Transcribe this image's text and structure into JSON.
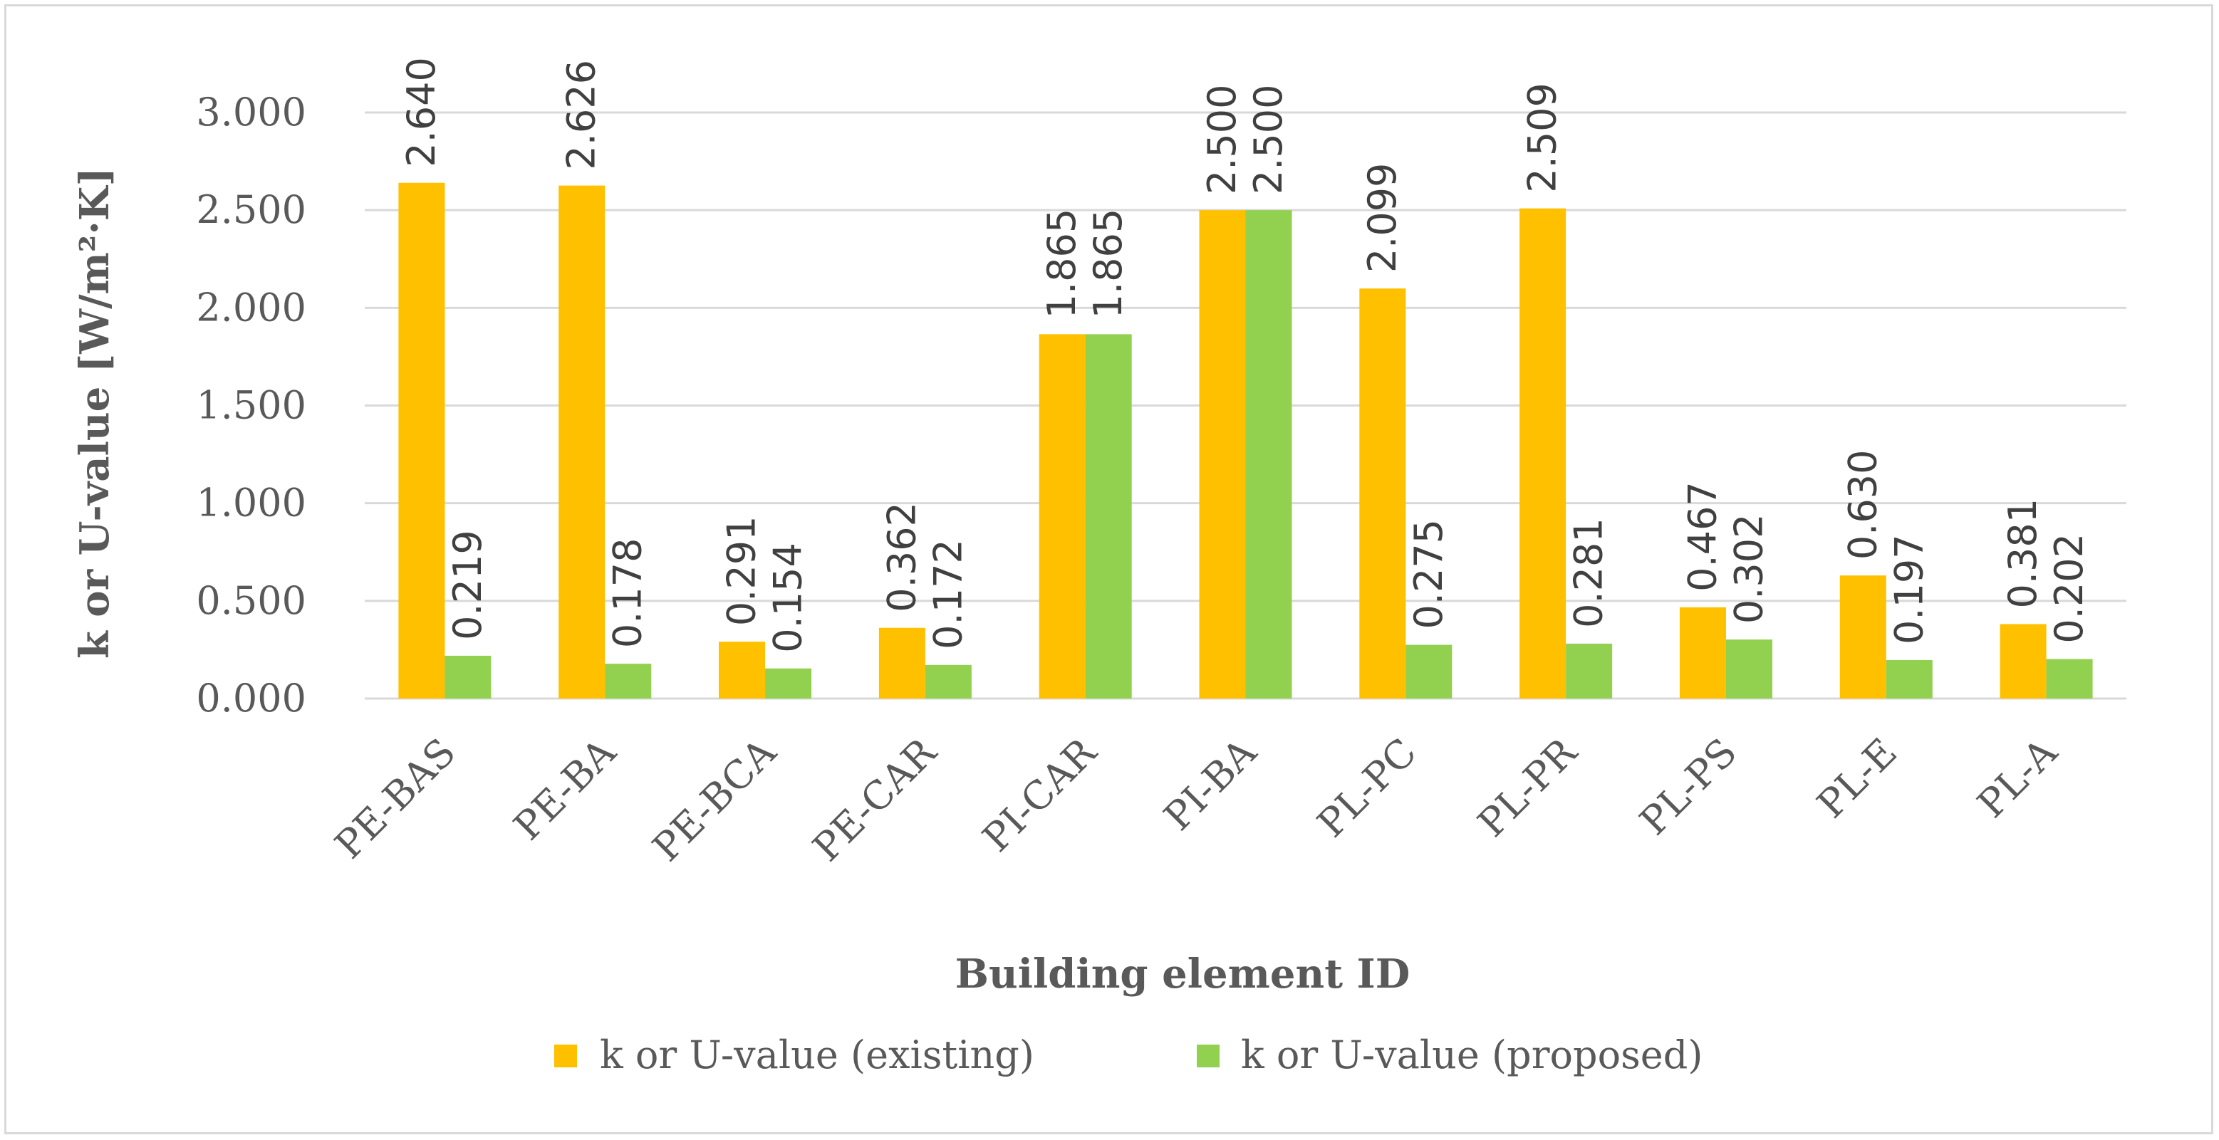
{
  "chart_data": {
    "type": "bar",
    "title": "",
    "xlabel": "Building element ID",
    "ylabel": "k or U-value [W/m²·K]",
    "ylim": [
      0,
      3.0
    ],
    "yticks": [
      "0.000",
      "0.500",
      "1.000",
      "1.500",
      "2.000",
      "2.500",
      "3.000"
    ],
    "categories": [
      "PE-BAS",
      "PE-BA",
      "PE-BCA",
      "PE-CAR",
      "PI-CAR",
      "PI-BA",
      "PL-PC",
      "PL-PR",
      "PL-PS",
      "PL-E",
      "PL-A"
    ],
    "series": [
      {
        "name": "k or U-value (existing)",
        "color": "#ffc000",
        "values": [
          2.64,
          2.626,
          0.291,
          0.362,
          1.865,
          2.5,
          2.099,
          2.509,
          0.467,
          0.63,
          0.381
        ],
        "labels": [
          "2.640",
          "2.626",
          "0.291",
          "0.362",
          "1.865",
          "2.500",
          "2.099",
          "2.509",
          "0.467",
          "0.630",
          "0.381"
        ]
      },
      {
        "name": "k or U-value (proposed)",
        "color": "#92d050",
        "values": [
          0.219,
          0.178,
          0.154,
          0.172,
          1.865,
          2.5,
          0.275,
          0.281,
          0.302,
          0.197,
          0.202
        ],
        "labels": [
          "0.219",
          "0.178",
          "0.154",
          "0.172",
          "1.865",
          "2.500",
          "0.275",
          "0.281",
          "0.302",
          "0.197",
          "0.202"
        ]
      }
    ],
    "legend": "bottom",
    "grid": true
  }
}
